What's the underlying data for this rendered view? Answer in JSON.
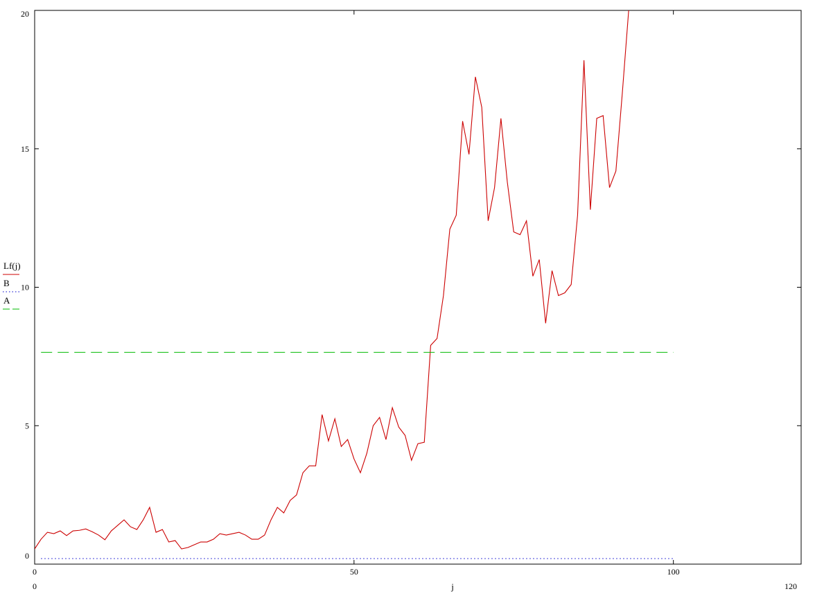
{
  "chart_data": {
    "type": "line",
    "xlabel": "j",
    "ylabel": "",
    "xlim": [
      0,
      120
    ],
    "ylim": [
      0,
      20
    ],
    "x_range_labels": {
      "min": "0",
      "max": "120"
    },
    "y_range_labels": {
      "min": "0",
      "max": "20"
    },
    "x_ticks": [
      0,
      50,
      100
    ],
    "x_tick_labels": [
      "0",
      "50",
      "100"
    ],
    "y_ticks": [
      0,
      5,
      10,
      15,
      20
    ],
    "y_tick_labels": [
      "0",
      "5",
      "10",
      "15",
      "20"
    ],
    "grid": false,
    "legend": {
      "placement": "left",
      "entries": [
        {
          "label": "Lf(j)",
          "color": "#cc0000",
          "style": "solid"
        },
        {
          "label": "B",
          "color": "#0000cc",
          "style": "dotted"
        },
        {
          "label": "A",
          "color": "#00bb00",
          "style": "dashed"
        }
      ]
    },
    "series": [
      {
        "name": "Lf(j)",
        "color": "#cc0000",
        "style": "solid",
        "x": [
          0,
          1,
          2,
          3,
          4,
          5,
          6,
          7,
          8,
          9,
          10,
          11,
          12,
          13,
          14,
          15,
          16,
          17,
          18,
          19,
          20,
          21,
          22,
          23,
          24,
          25,
          26,
          27,
          28,
          29,
          30,
          31,
          32,
          33,
          34,
          35,
          36,
          37,
          38,
          39,
          40,
          41,
          42,
          43,
          44,
          45,
          46,
          47,
          48,
          49,
          50,
          51,
          52,
          53,
          54,
          55,
          56,
          57,
          58,
          59,
          60,
          61,
          62,
          63,
          64,
          65,
          66,
          67,
          68,
          69,
          70,
          71,
          72,
          73,
          74,
          75,
          76,
          77,
          78,
          79,
          80,
          81,
          82,
          83,
          84,
          85,
          86,
          87,
          88,
          89,
          90,
          91,
          92,
          93,
          94
        ],
        "y": [
          0.55,
          0.9,
          1.15,
          1.1,
          1.2,
          1.03,
          1.2,
          1.22,
          1.27,
          1.17,
          1.05,
          0.88,
          1.2,
          1.4,
          1.6,
          1.35,
          1.25,
          1.6,
          2.05,
          1.15,
          1.25,
          0.8,
          0.85,
          0.55,
          0.6,
          0.7,
          0.8,
          0.8,
          0.9,
          1.1,
          1.05,
          1.1,
          1.15,
          1.05,
          0.9,
          0.9,
          1.05,
          1.6,
          2.05,
          1.85,
          2.3,
          2.5,
          3.3,
          3.55,
          3.55,
          5.4,
          4.45,
          5.25,
          4.25,
          4.5,
          3.8,
          3.3,
          4.0,
          5.0,
          5.3,
          4.5,
          5.65,
          4.95,
          4.65,
          3.75,
          4.35,
          4.4,
          7.9,
          8.15,
          9.7,
          12.1,
          12.6,
          16.0,
          14.8,
          17.6,
          16.5,
          12.4,
          13.6,
          16.1,
          13.8,
          12.0,
          11.9,
          12.4,
          10.4,
          11.0,
          8.7,
          10.6,
          9.7,
          9.8,
          10.1,
          12.6,
          18.2,
          12.8,
          16.1,
          16.2,
          13.6,
          14.2,
          17.0,
          20.0,
          20.5
        ]
      },
      {
        "name": "B",
        "color": "#0000cc",
        "style": "dotted",
        "x": [
          1,
          100
        ],
        "y": [
          0.2,
          0.2
        ]
      },
      {
        "name": "A",
        "color": "#00bb00",
        "style": "dashed",
        "x": [
          1,
          100
        ],
        "y": [
          7.65,
          7.65
        ]
      }
    ]
  }
}
